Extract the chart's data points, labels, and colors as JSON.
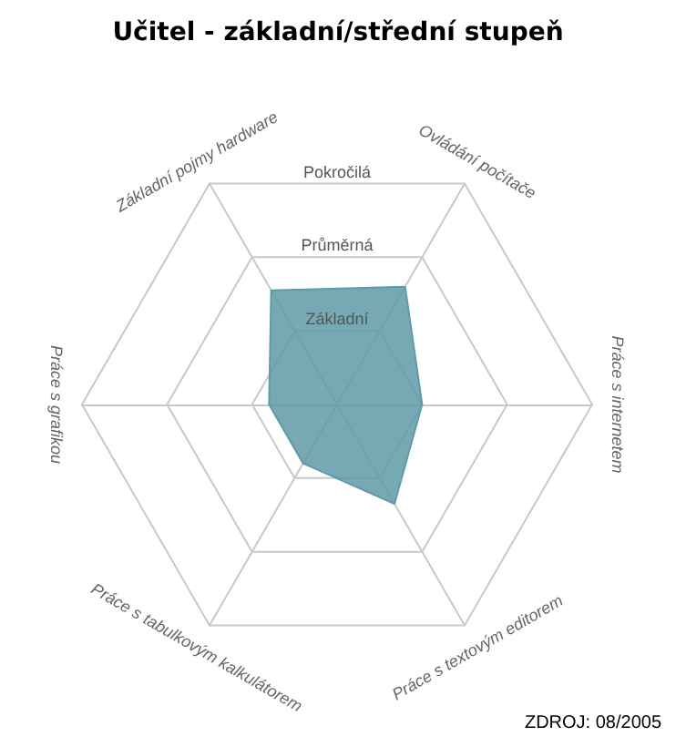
{
  "chart_data": {
    "type": "radar",
    "title": "Učitel - základní/střední stupeň",
    "categories": [
      "Ovládání počítače",
      "Práce s internetem",
      "Práce s textovým editorem",
      "Práce s tabulkovým kalkulátorem",
      "Práce s grafikou",
      "Základní pojmy hardware"
    ],
    "series": [
      {
        "color": "#5f9aa8",
        "values": [
          1.6,
          1.0,
          1.35,
          0.8,
          0.8,
          1.55
        ]
      }
    ],
    "ylim": [
      0,
      3
    ],
    "yticks": [
      {
        "value": 1,
        "label": "Základní"
      },
      {
        "value": 2,
        "label": "Průměrná"
      },
      {
        "value": 3,
        "label": "Pokročilá"
      }
    ],
    "annotations": [
      "ZDROJ: 08/2005"
    ]
  }
}
